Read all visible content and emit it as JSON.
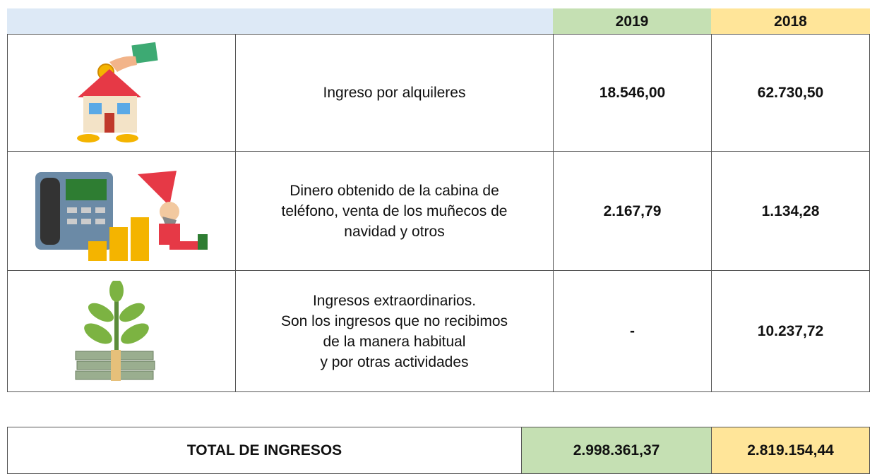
{
  "header": {
    "years": [
      "2019",
      "2018"
    ]
  },
  "table": {
    "rows": [
      {
        "label": [
          "Ingreso por alquileres"
        ],
        "values": [
          "18.546,00",
          "62.730,50"
        ]
      },
      {
        "label": [
          "Dinero obtenido de la cabina de",
          "teléfono, venta de los muñecos de",
          "navidad y otros"
        ],
        "values": [
          "2.167,79",
          "1.134,28"
        ]
      },
      {
        "label": [
          "Ingresos extraordinarios.",
          "Son los ingresos que no recibimos",
          "de la manera habitual",
          "y por otras actividades"
        ],
        "values": [
          "-",
          "10.237,72"
        ]
      }
    ]
  },
  "total": {
    "label": "TOTAL DE INGRESOS",
    "values": [
      "2.998.361,37",
      "2.819.154,44"
    ]
  }
}
